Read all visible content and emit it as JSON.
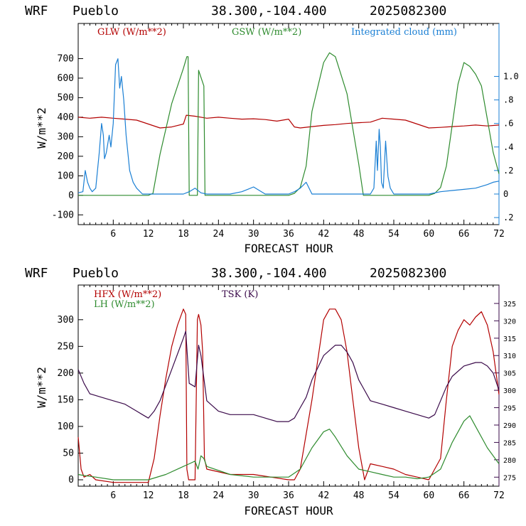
{
  "header": {
    "model": "WRF",
    "site": "Pueblo",
    "coords": "38.300,-104.400",
    "init": "2025082300"
  },
  "colors": {
    "red": "#b30000",
    "green": "#2e8b2e",
    "blue": "#1a7fd4",
    "purple": "#3a0a4a"
  },
  "chart_data": [
    {
      "type": "line",
      "xlabel": "FORECAST HOUR",
      "ylabel": "W/m**2",
      "xlim": [
        0,
        72
      ],
      "ylim": [
        -150,
        880
      ],
      "y2lim": [
        -0.26,
        1.45
      ],
      "xticks": [
        6,
        12,
        18,
        24,
        30,
        36,
        42,
        48,
        54,
        60,
        66,
        72
      ],
      "yticks": [
        -100,
        0,
        100,
        200,
        300,
        400,
        500,
        600,
        700
      ],
      "y2ticks": [
        -0.2,
        0,
        0.2,
        0.4,
        0.6,
        0.8,
        1.0
      ],
      "y2ticklabels": [
        ".2",
        "0",
        ".2",
        ".4",
        ".6",
        ".8",
        "1.0"
      ],
      "series": [
        {
          "name": "GLW (W/m**2)",
          "color": "red",
          "axis": "left",
          "x": [
            0,
            2,
            4,
            6,
            8,
            10,
            12,
            14,
            16,
            18,
            18.5,
            20,
            22,
            24,
            26,
            28,
            30,
            32,
            34,
            36,
            37,
            38,
            40,
            42,
            44,
            46,
            48,
            50,
            52,
            54,
            56,
            58,
            60,
            62,
            64,
            66,
            68,
            70,
            72
          ],
          "y": [
            400,
            395,
            400,
            395,
            390,
            385,
            365,
            345,
            350,
            365,
            410,
            405,
            395,
            400,
            395,
            390,
            392,
            388,
            380,
            390,
            350,
            345,
            352,
            358,
            362,
            368,
            372,
            375,
            395,
            390,
            385,
            365,
            345,
            348,
            352,
            355,
            360,
            355,
            360
          ]
        },
        {
          "name": "GSW (W/m**2)",
          "color": "green",
          "axis": "left",
          "x": [
            0,
            12,
            12.8,
            14,
            16,
            18,
            18.6,
            18.8,
            19,
            20,
            20.4,
            20.6,
            21.5,
            21.7,
            22,
            26,
            30,
            36,
            37,
            38,
            39,
            40,
            42,
            43,
            44,
            46,
            48,
            48.8,
            50,
            60,
            61,
            62,
            63,
            64,
            65,
            66,
            67,
            68,
            69,
            70,
            71,
            72
          ],
          "y": [
            0,
            0,
            10,
            210,
            470,
            650,
            710,
            710,
            0,
            0,
            0,
            640,
            560,
            0,
            0,
            0,
            0,
            0,
            10,
            40,
            150,
            430,
            680,
            730,
            710,
            520,
            160,
            0,
            0,
            0,
            10,
            40,
            150,
            360,
            570,
            680,
            660,
            620,
            560,
            390,
            220,
            110
          ]
        },
        {
          "name": "Integrated cloud (mm)",
          "color": "blue",
          "axis": "right",
          "x": [
            0,
            0.8,
            1.2,
            1.6,
            2,
            2.4,
            3,
            3.6,
            4,
            4.3,
            4.5,
            4.8,
            5.3,
            5.6,
            6,
            6.4,
            6.8,
            7.1,
            7.4,
            7.8,
            8.2,
            8.8,
            9.4,
            10,
            11,
            12,
            14,
            18,
            19,
            20,
            21,
            22,
            26,
            28,
            29,
            30,
            31,
            32,
            36,
            37,
            38,
            39,
            40,
            42,
            50,
            50.6,
            51,
            51.2,
            51.5,
            51.7,
            51.9,
            52.2,
            52.6,
            52.8,
            53,
            53.4,
            54,
            56,
            60,
            62,
            64,
            66,
            68,
            70,
            71,
            72
          ],
          "y": [
            0.01,
            0.02,
            0.2,
            0.1,
            0.05,
            0.02,
            0.05,
            0.35,
            0.6,
            0.5,
            0.3,
            0.35,
            0.5,
            0.4,
            0.6,
            1.1,
            1.15,
            0.9,
            1.0,
            0.8,
            0.5,
            0.2,
            0.1,
            0.05,
            0,
            0,
            0,
            0,
            0.02,
            0.05,
            0.01,
            0,
            0,
            0.02,
            0.04,
            0.06,
            0.03,
            0,
            0,
            0.02,
            0.05,
            0.1,
            0,
            0,
            0,
            0.05,
            0.45,
            0.2,
            0.55,
            0.4,
            0.1,
            0.05,
            0.45,
            0.3,
            0.15,
            0.05,
            0,
            0,
            0,
            0.02,
            0.03,
            0.04,
            0.05,
            0.08,
            0.1,
            0.11
          ]
        }
      ]
    },
    {
      "type": "line",
      "xlabel": "FORECAST HOUR",
      "ylabel": "W/m**2",
      "xlim": [
        0,
        72
      ],
      "ylim": [
        -12,
        365
      ],
      "y2lim": [
        272.4,
        330.3
      ],
      "xticks": [
        6,
        12,
        18,
        24,
        30,
        36,
        42,
        48,
        54,
        60,
        66,
        72
      ],
      "yticks": [
        0,
        50,
        100,
        150,
        200,
        250,
        300
      ],
      "y2ticks": [
        275,
        280,
        285,
        290,
        295,
        300,
        305,
        310,
        315,
        320,
        325
      ],
      "series": [
        {
          "name": "HFX (W/m**2)",
          "color": "red",
          "axis": "left",
          "x": [
            0,
            0.5,
            1,
            2,
            3,
            6,
            9,
            12,
            13,
            14,
            15,
            16,
            17,
            18,
            18.4,
            18.6,
            18.9,
            20,
            20.4,
            20.6,
            21,
            21.3,
            21.6,
            22,
            26,
            30,
            36,
            37,
            38,
            40,
            42,
            43,
            44,
            45,
            46,
            47,
            48,
            49,
            50,
            52,
            54,
            56,
            58,
            60,
            62,
            63,
            64,
            65,
            66,
            67,
            68,
            69,
            70,
            71,
            72
          ],
          "y": [
            80,
            20,
            5,
            10,
            0,
            -5,
            -5,
            -5,
            40,
            120,
            190,
            250,
            290,
            320,
            310,
            20,
            0,
            0,
            300,
            310,
            290,
            240,
            40,
            20,
            10,
            10,
            0,
            0,
            20,
            150,
            300,
            320,
            320,
            300,
            240,
            150,
            60,
            0,
            30,
            25,
            20,
            10,
            5,
            0,
            40,
            150,
            250,
            280,
            300,
            290,
            305,
            315,
            290,
            240,
            160
          ]
        },
        {
          "name": "LH (W/m**2)",
          "color": "green",
          "axis": "left",
          "x": [
            0,
            1,
            3,
            6,
            9,
            12,
            15,
            18,
            19,
            20,
            20.5,
            21,
            21.5,
            22,
            26,
            30,
            34,
            36,
            38,
            40,
            42,
            43,
            44,
            46,
            48,
            50,
            52,
            54,
            56,
            58,
            60,
            62,
            64,
            66,
            67,
            68,
            70,
            72
          ],
          "y": [
            10,
            8,
            5,
            0,
            0,
            0,
            10,
            25,
            30,
            35,
            20,
            45,
            40,
            25,
            10,
            5,
            5,
            5,
            20,
            60,
            90,
            95,
            80,
            45,
            20,
            15,
            10,
            5,
            5,
            2,
            5,
            20,
            70,
            110,
            120,
            100,
            60,
            30
          ]
        },
        {
          "name": "TSK (K)",
          "color": "purple",
          "axis": "right",
          "x": [
            0,
            1,
            2,
            4,
            6,
            8,
            10,
            11,
            12,
            13,
            14,
            16,
            18,
            18.4,
            19,
            20,
            20.6,
            21,
            22,
            24,
            26,
            28,
            30,
            32,
            34,
            35,
            36,
            37,
            38,
            39,
            40,
            42,
            44,
            45,
            46,
            47,
            48,
            50,
            52,
            54,
            56,
            58,
            60,
            61,
            62,
            63,
            64,
            66,
            68,
            69,
            70,
            71,
            72
          ],
          "y": [
            306,
            302,
            299,
            298,
            297,
            296,
            294,
            293,
            292,
            294,
            297,
            306,
            315,
            317,
            302,
            301,
            313,
            310,
            297,
            294,
            293,
            293,
            293,
            292,
            291,
            291,
            291,
            292,
            295,
            298,
            303,
            310,
            313,
            313,
            311,
            308,
            303,
            297,
            296,
            295,
            294,
            293,
            292,
            293,
            297,
            301,
            304,
            307,
            308,
            308,
            307,
            305,
            300
          ]
        }
      ]
    }
  ]
}
